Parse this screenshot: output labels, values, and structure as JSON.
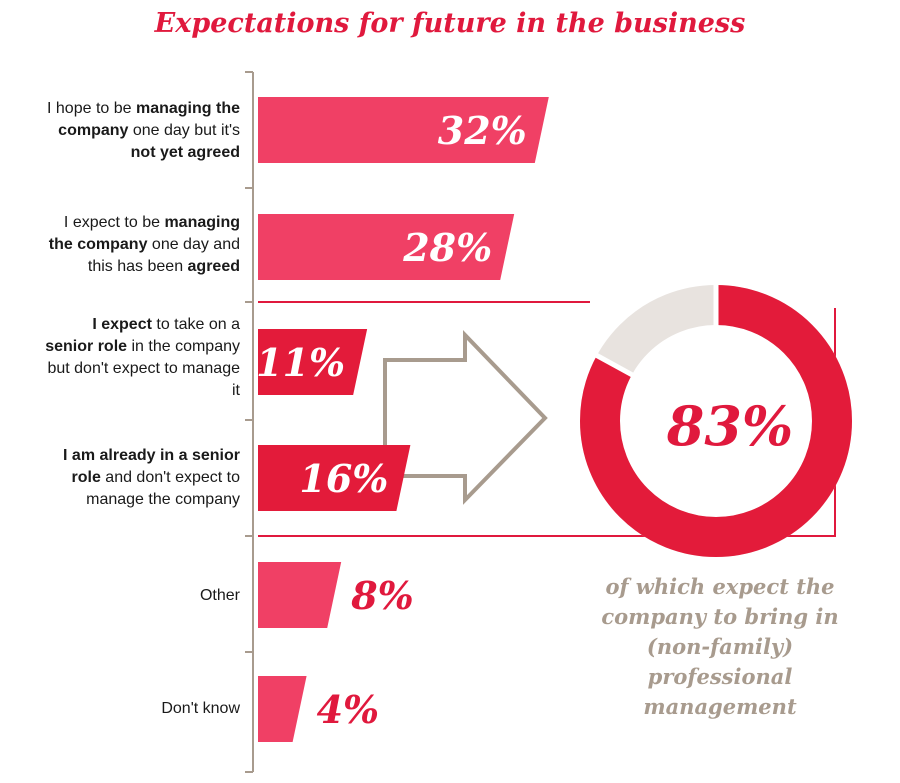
{
  "chart_data": {
    "type": "bar",
    "title": "Expectations for future in the business",
    "orientation": "horizontal",
    "categories": [
      [
        {
          "t": "I hope to be "
        },
        {
          "t": "managing the company",
          "b": true
        },
        {
          "t": " one day but it's "
        },
        {
          "t": "not yet agreed",
          "b": true
        }
      ],
      [
        {
          "t": "I expect to be "
        },
        {
          "t": "managing the company",
          "b": true
        },
        {
          "t": " one day and this has been "
        },
        {
          "t": "agreed",
          "b": true
        }
      ],
      [
        {
          "t": "I expect",
          "b": true
        },
        {
          "t": " to take on a "
        },
        {
          "t": "senior role",
          "b": true
        },
        {
          "t": " in the company but don't expect to manage it"
        }
      ],
      [
        {
          "t": "I am already in a senior role",
          "b": true
        },
        {
          "t": " and don't expect to manage the company"
        }
      ],
      [
        {
          "t": "Other"
        }
      ],
      [
        {
          "t": "Don't know"
        }
      ]
    ],
    "values": [
      32,
      28,
      11,
      16,
      8,
      4
    ],
    "value_labels": [
      "32%",
      "28%",
      "11%",
      "16%",
      "8%",
      "4%"
    ],
    "highlighted": [
      false,
      false,
      true,
      true,
      false,
      false
    ],
    "colors": {
      "bar": "#f04065",
      "bar_highlight": "#e31b3a",
      "accent": "#e0193d",
      "muted": "#a89b8e",
      "ring_rest": "#e8e3df"
    },
    "callout": {
      "value": 83,
      "label": "83%",
      "note": "of which expect the company to bring in (non-family) professional management"
    }
  }
}
